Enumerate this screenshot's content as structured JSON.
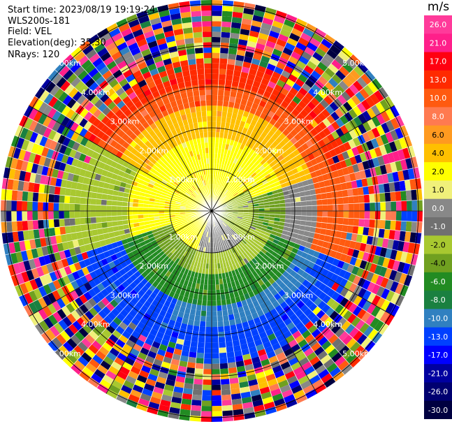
{
  "header": {
    "start_time": "Start time: 2023/08/19 19:19:24",
    "instrument": "WLS200s-181",
    "field": "Field: VEL",
    "elevation": "Elevation(deg): 35.30",
    "nrays": "NRays: 120"
  },
  "colorbar": {
    "unit": "m/s",
    "ticks": [
      "26.0",
      "21.0",
      "17.0",
      "13.0",
      "10.0",
      "8.0",
      "6.0",
      "4.0",
      "2.0",
      "1.0",
      "0.0",
      "-1.0",
      "-2.0",
      "-4.0",
      "-6.0",
      "-8.0",
      "-10.0",
      "-13.0",
      "-17.0",
      "-21.0",
      "-26.0",
      "-30.0"
    ],
    "colors": [
      "#ff3a9a",
      "#ff1f8a",
      "#ff0010",
      "#ff2a00",
      "#ff5a10",
      "#ff7a50",
      "#ff9a20",
      "#ffc000",
      "#ffff00",
      "#f0f07a",
      "#888888",
      "#707070",
      "#a8c830",
      "#70a020",
      "#228b22",
      "#1a8040",
      "#3080c0",
      "#0040ff",
      "#0000ff",
      "#0000a0",
      "#000070",
      "#000040"
    ]
  },
  "range_rings": {
    "labels": [
      "1.00km",
      "2.00km",
      "3.00km",
      "4.00km",
      "5.00km"
    ]
  }
}
